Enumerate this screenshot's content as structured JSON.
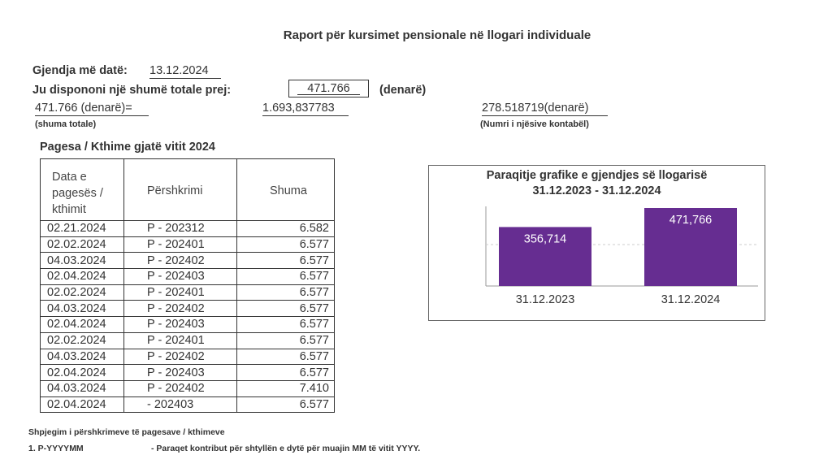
{
  "title": "Raport për kursimet pensionale në llogari individuale",
  "status": {
    "date_label": "Gjendja më datë:",
    "date_value": "13.12.2024",
    "total_label": "Ju dispononi një shumë totale prej:",
    "total_value": "471.766",
    "currency": "(denarë)",
    "formula_total": "471.766 (denarë)=",
    "unit_value": "1.693,837783",
    "units": "278.518719(denarë)",
    "total_caption": "(shuma totale)",
    "units_caption": "(Numri i njësive kontabël)"
  },
  "payments": {
    "section_title": "Pagesa / Kthime gjatë vitit 2024",
    "headers": [
      "Data e pagesës / kthimit",
      "Përshkrimi",
      "Shuma"
    ],
    "rows": [
      {
        "date": "02.21.2024",
        "desc": "P - 202312",
        "amount": "6.582"
      },
      {
        "date": "02.02.2024",
        "desc": "P - 202401",
        "amount": "6.577"
      },
      {
        "date": "04.03.2024",
        "desc": "P - 202402",
        "amount": "6.577"
      },
      {
        "date": "02.04.2024",
        "desc": "P - 202403",
        "amount": "6.577"
      },
      {
        "date": "02.02.2024",
        "desc": "P - 202401",
        "amount": "6.577"
      },
      {
        "date": "04.03.2024",
        "desc": "P - 202402",
        "amount": "6.577"
      },
      {
        "date": "02.04.2024",
        "desc": "P - 202403",
        "amount": "6.577"
      },
      {
        "date": "02.02.2024",
        "desc": "P - 202401",
        "amount": "6.577"
      },
      {
        "date": "04.03.2024",
        "desc": "P - 202402",
        "amount": "6.577"
      },
      {
        "date": "02.04.2024",
        "desc": "P - 202403",
        "amount": "6.577"
      },
      {
        "date": "04.03.2024",
        "desc": "P - 202402",
        "amount": "7.410"
      },
      {
        "date": "02.04.2024",
        "desc": " - 202403",
        "amount": "6.577"
      }
    ]
  },
  "chart_data": {
    "type": "bar",
    "title": "Paraqitje grafike e gjendjes së llogarisë",
    "subtitle": "31.12.2023 - 31.12.2024",
    "categories": [
      "31.12.2023",
      "31.12.2024"
    ],
    "values": [
      356714,
      471766
    ],
    "value_labels": [
      "356,714",
      "471,766"
    ],
    "ylim": [
      0,
      500000
    ],
    "bar_color": "#662d91",
    "grid": true
  },
  "footnote": {
    "title": "Shpjegim i përshkrimeve të pagesave / kthimeve",
    "item": "1. P-YYYYMM",
    "description": "-  Paraqet kontribut për shtyllën e dytë për muajin MM të vitit YYYY."
  }
}
